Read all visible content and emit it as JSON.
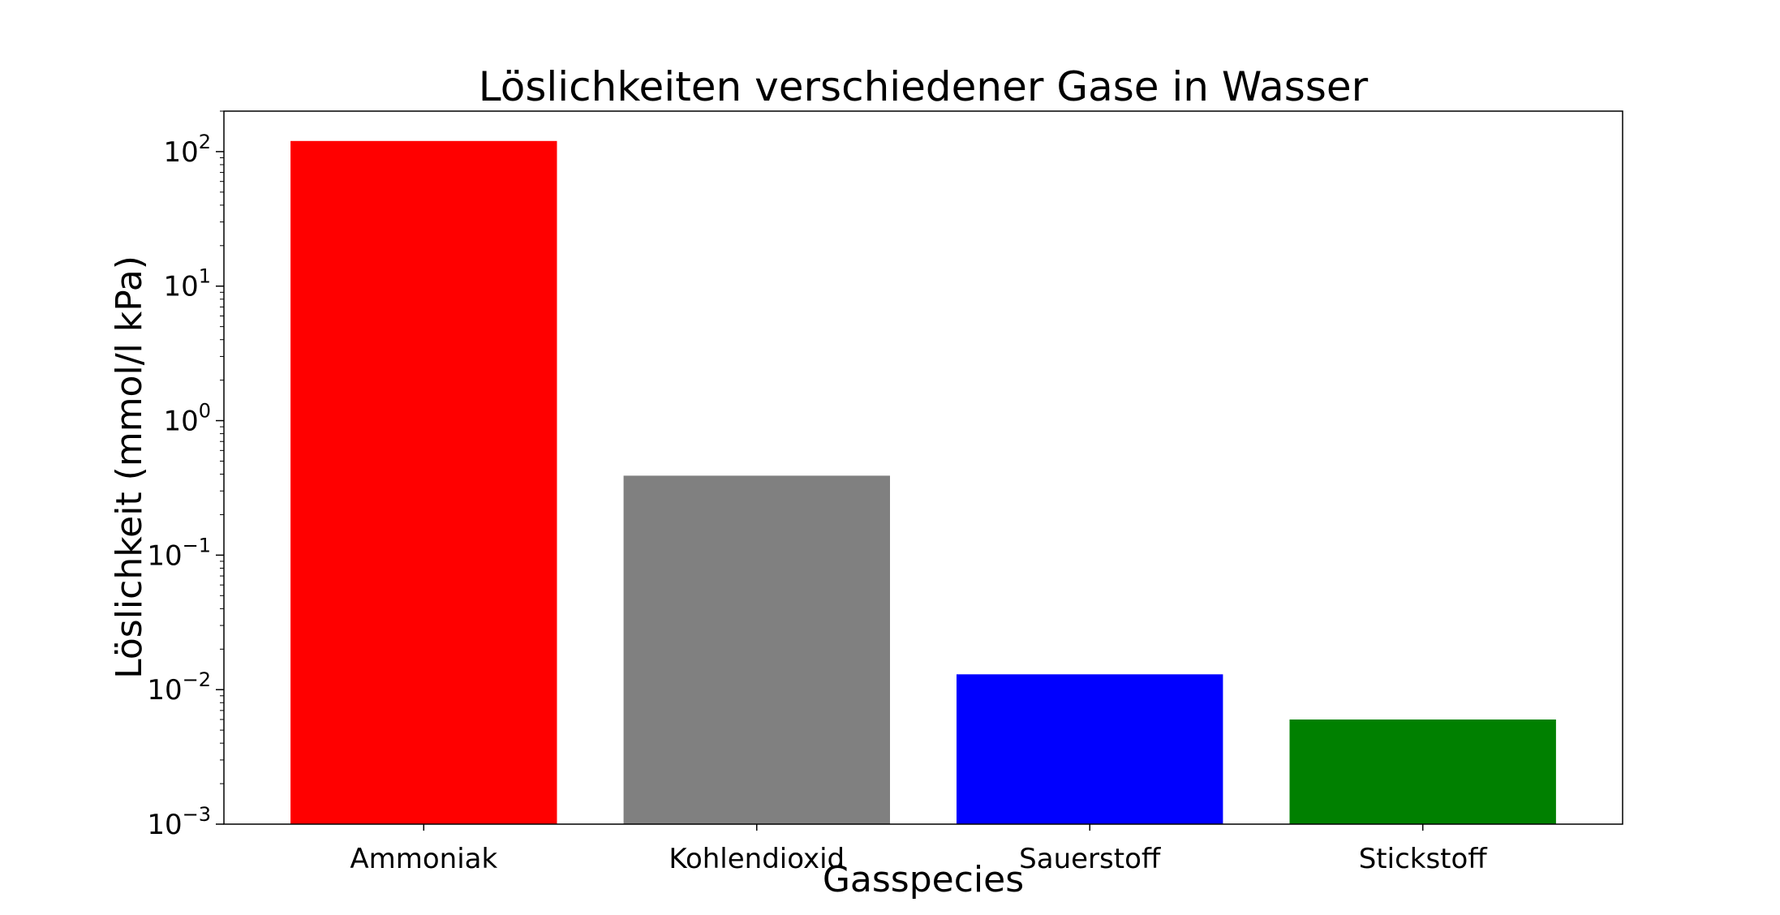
{
  "chart_data": {
    "type": "bar",
    "title": "Löslichkeiten verschiedener Gase in Wasser",
    "xlabel": "Gasspecies",
    "ylabel": "Löslichkeit (mmol/l kPa)",
    "yscale": "log",
    "ylim": [
      0.001,
      200
    ],
    "categories": [
      "Ammoniak",
      "Kohlendioxid",
      "Sauerstoff",
      "Stickstoff"
    ],
    "values": [
      120,
      0.39,
      0.013,
      0.006
    ],
    "colors": [
      "#ff0000",
      "#808080",
      "#0000ff",
      "#008000"
    ],
    "yticks": [
      {
        "value": 0.001,
        "base": "10",
        "exp": "−3"
      },
      {
        "value": 0.01,
        "base": "10",
        "exp": "−2"
      },
      {
        "value": 0.1,
        "base": "10",
        "exp": "−1"
      },
      {
        "value": 1,
        "base": "10",
        "exp": "0"
      },
      {
        "value": 10,
        "base": "10",
        "exp": "1"
      },
      {
        "value": 100,
        "base": "10",
        "exp": "2"
      }
    ],
    "grid": false,
    "legend": false
  }
}
